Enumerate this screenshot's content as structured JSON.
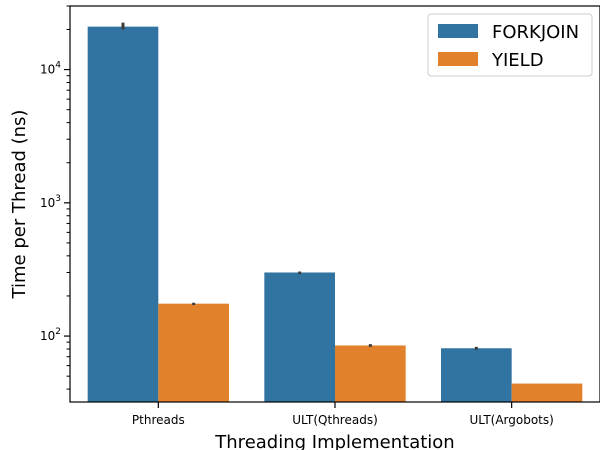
{
  "chart_data": {
    "type": "bar",
    "xlabel": "Threading Implementation",
    "ylabel": "Time per Thread (ns)",
    "yscale": "log",
    "ylim": [
      32,
      30000
    ],
    "y_ticks": [
      {
        "value": 100,
        "base": "10",
        "exp": "2"
      },
      {
        "value": 1000,
        "base": "10",
        "exp": "3"
      },
      {
        "value": 10000,
        "base": "10",
        "exp": "4"
      }
    ],
    "categories": [
      "Pthreads",
      "ULT(Qthreads)",
      "ULT(Argobots)"
    ],
    "series": [
      {
        "name": "FORKJOIN",
        "color": "#3274a1",
        "values": [
          21000,
          300,
          81
        ],
        "errors": [
          [
            20000,
            22500
          ],
          [
            292,
            305
          ],
          [
            79,
            83
          ]
        ]
      },
      {
        "name": "YIELD",
        "color": "#e1812c",
        "values": [
          175,
          85,
          44
        ],
        "errors": [
          [
            171,
            178
          ],
          [
            83,
            87
          ],
          [
            44,
            44
          ]
        ]
      }
    ],
    "legend_position": "top-right",
    "grid": false
  }
}
